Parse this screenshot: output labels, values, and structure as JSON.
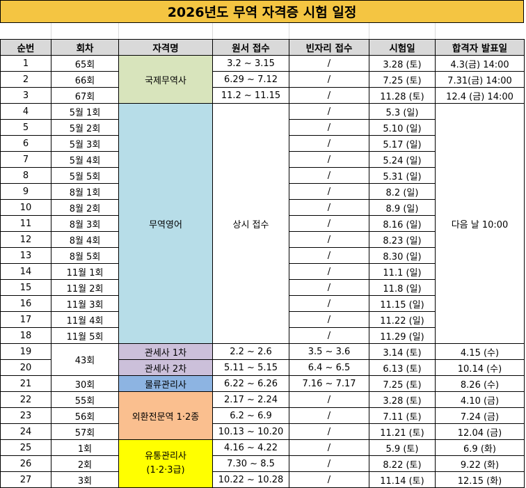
{
  "title": "2026년도 무역 자격증 시험 일정",
  "colors": {
    "title_bg": "#f4c542",
    "header_bg": "#d9d9d9",
    "국제무역사": "#d8e4bc",
    "무역영어": "#b7dde8",
    "관세사": "#ccc0da",
    "물류관리사": "#8db4e2",
    "외환전문역": "#fabf8f",
    "유통관리사": "#ffff00"
  },
  "headers": [
    "순번",
    "회차",
    "자격명",
    "원서 접수",
    "빈자리 접수",
    "시험일",
    "합격자 발표일"
  ],
  "rows": [
    {
      "no": "1",
      "round": "65회",
      "app": "3.2 ~ 3.15",
      "vac": "/",
      "exam": "3.28 (토)",
      "result": "4.3(금) 14:00"
    },
    {
      "no": "2",
      "round": "66회",
      "app": "6.29 ~ 7.12",
      "vac": "/",
      "exam": "7.25 (토)",
      "result": "7.31(금) 14:00"
    },
    {
      "no": "3",
      "round": "67회",
      "app": "11.2 ~ 11.15",
      "vac": "/",
      "exam": "11.28 (토)",
      "result": "12.4 (금) 14:00"
    },
    {
      "no": "4",
      "round": "5월 1회",
      "vac": "/",
      "exam": "5.3 (일)"
    },
    {
      "no": "5",
      "round": "5월 2회",
      "vac": "/",
      "exam": "5.10 (일)"
    },
    {
      "no": "6",
      "round": "5월 3회",
      "vac": "/",
      "exam": "5.17 (일)"
    },
    {
      "no": "7",
      "round": "5월 4회",
      "vac": "/",
      "exam": "5.24 (일)"
    },
    {
      "no": "8",
      "round": "5월 5회",
      "vac": "/",
      "exam": "5.31 (일)"
    },
    {
      "no": "9",
      "round": "8월 1회",
      "vac": "/",
      "exam": "8.2 (일)"
    },
    {
      "no": "10",
      "round": "8월 2회",
      "vac": "/",
      "exam": "8.9 (일)"
    },
    {
      "no": "11",
      "round": "8월 3회",
      "vac": "/",
      "exam": "8.16 (일)"
    },
    {
      "no": "12",
      "round": "8월 4회",
      "vac": "/",
      "exam": "8.23 (일)"
    },
    {
      "no": "13",
      "round": "8월 5회",
      "vac": "/",
      "exam": "8.30 (일)"
    },
    {
      "no": "14",
      "round": "11월 1회",
      "vac": "/",
      "exam": "11.1 (일)"
    },
    {
      "no": "15",
      "round": "11월 2회",
      "vac": "/",
      "exam": "11.8 (일)"
    },
    {
      "no": "16",
      "round": "11월 3회",
      "vac": "/",
      "exam": "11.15 (일)"
    },
    {
      "no": "17",
      "round": "11월 4회",
      "vac": "/",
      "exam": "11.22 (일)"
    },
    {
      "no": "18",
      "round": "11월 5회",
      "vac": "/",
      "exam": "11.29 (일)"
    },
    {
      "no": "19",
      "name": "관세사 1차",
      "app": "2.2 ~ 2.6",
      "vac": "3.5 ~ 3.6",
      "exam": "3.14 (토)",
      "result": "4.15 (수)"
    },
    {
      "no": "20",
      "name": "관세사 2차",
      "app": "5.11 ~ 5.15",
      "vac": "6.4 ~ 6.5",
      "exam": "6.13 (토)",
      "result": "10.14 (수)"
    },
    {
      "no": "21",
      "round": "30회",
      "name": "물류관리사",
      "app": "6.22 ~ 6.26",
      "vac": "7.16 ~ 7.17",
      "exam": "7.25 (토)",
      "result": "8.26 (수)"
    },
    {
      "no": "22",
      "round": "55회",
      "app": "2.17 ~ 2.24",
      "vac": "/",
      "exam": "3.28 (토)",
      "result": "4.10 (금)"
    },
    {
      "no": "23",
      "round": "56회",
      "app": "6.2 ~ 6.9",
      "vac": "/",
      "exam": "7.11 (토)",
      "result": "7.24 (금)"
    },
    {
      "no": "24",
      "round": "57회",
      "app": "10.13 ~ 10.20",
      "vac": "/",
      "exam": "11.21 (토)",
      "result": "12.04 (금)"
    },
    {
      "no": "25",
      "round": "1회",
      "app": "4.16 ~ 4.22",
      "vac": "/",
      "exam": "5.9 (토)",
      "result": "6.9 (화)"
    },
    {
      "no": "26",
      "round": "2회",
      "app": "7.30 ~ 8.5",
      "vac": "/",
      "exam": "8.22 (토)",
      "result": "9.22 (화)"
    },
    {
      "no": "27",
      "round": "3회",
      "app": "10.22 ~ 10.28",
      "vac": "/",
      "exam": "11.14 (토)",
      "result": "12.15 (화)"
    }
  ],
  "merged": {
    "trade_pro": "국제무역사",
    "trade_english": "무역영어",
    "trade_english_app": "상시 접수",
    "trade_english_result": "다음 날 10:00",
    "customs_round": "43회",
    "forex": "외환전문역 1·2종",
    "distribution_line1": "유통관리사",
    "distribution_line2": "(1·2·3급)"
  }
}
